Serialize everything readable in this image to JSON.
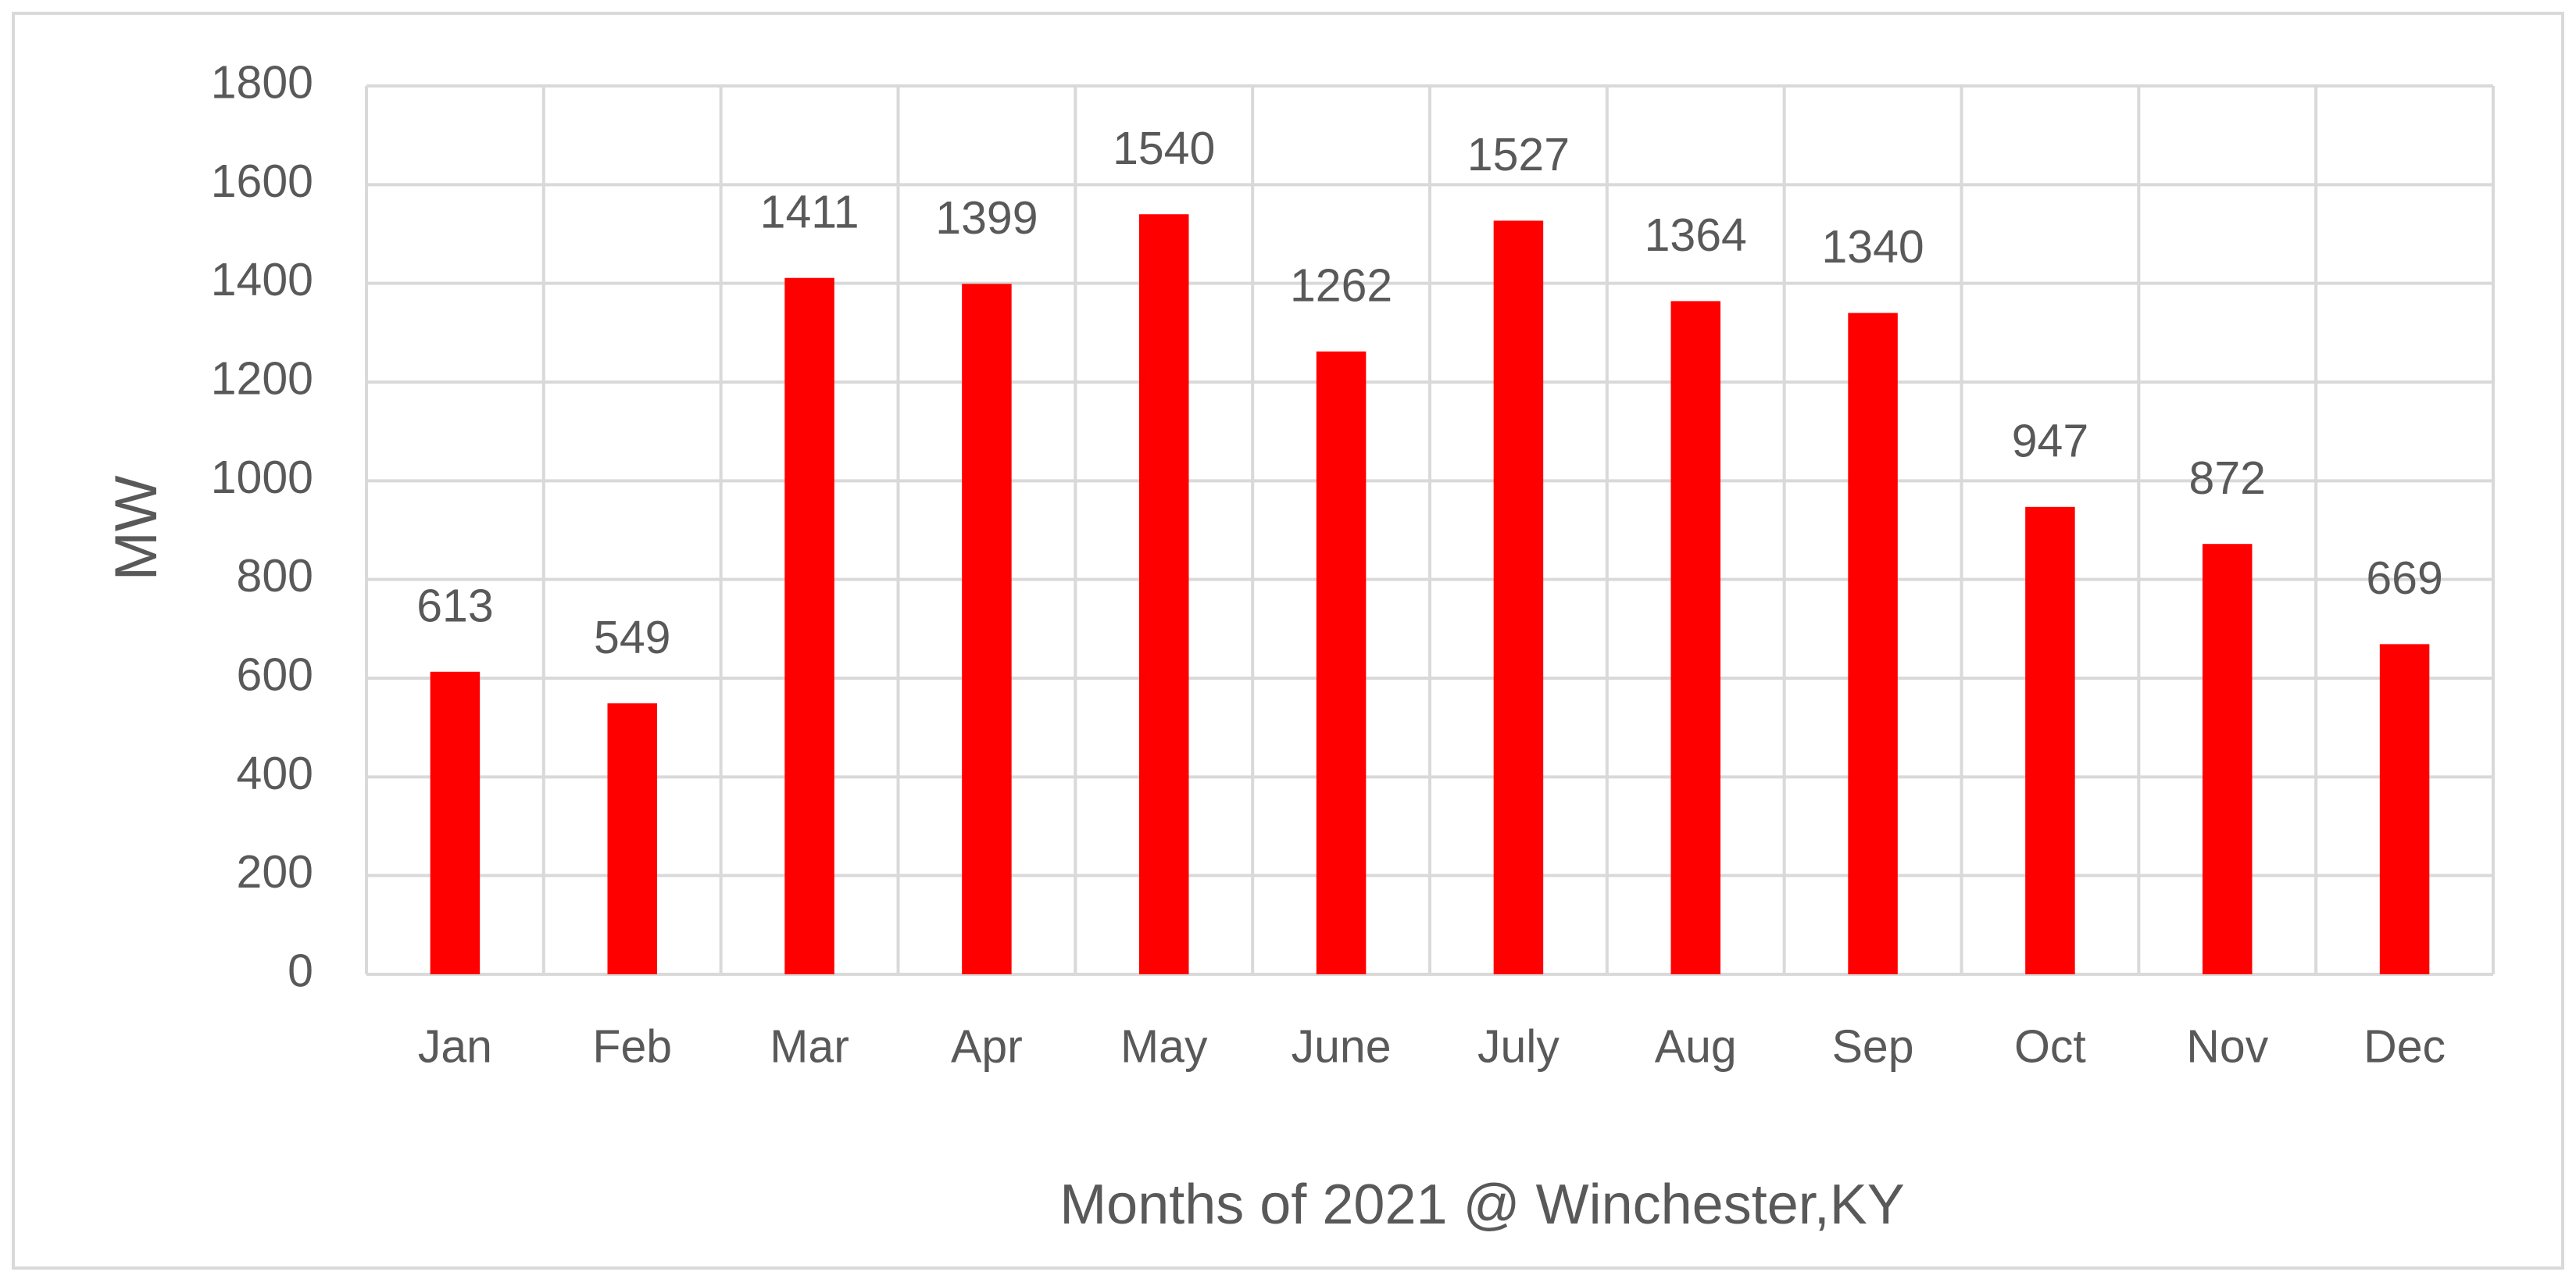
{
  "chart_data": {
    "type": "bar",
    "y_label": "MW",
    "x_label": "Months of 2021 @ Winchester,KY",
    "categories": [
      "Jan",
      "Feb",
      "Mar",
      "Apr",
      "May",
      "June",
      "July",
      "Aug",
      "Sep",
      "Oct",
      "Nov",
      "Dec"
    ],
    "values": [
      613,
      549,
      1411,
      1399,
      1540,
      1262,
      1527,
      1364,
      1340,
      947,
      872,
      669
    ],
    "color": "#ff0000",
    "ylim": [
      0,
      1800
    ],
    "yticks": [
      0,
      200,
      400,
      600,
      800,
      1000,
      1200,
      1400,
      1600,
      1800
    ],
    "grid": true
  }
}
